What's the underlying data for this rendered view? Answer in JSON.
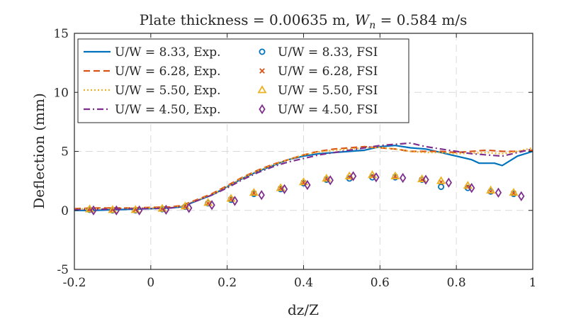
{
  "chart_data": {
    "type": "line",
    "title": "Plate thickness = 0.00635 m, W_n = 0.584 m/s",
    "title_parts": {
      "prefix": "Plate thickness = 0.00635 m, ",
      "var_main": "W",
      "var_sub": "n",
      "suffix": " = 0.584 m/s"
    },
    "xlabel": "dz/Z",
    "ylabel": "Deflection (mm)",
    "xlim": [
      -0.2,
      1.0
    ],
    "ylim": [
      -5,
      15
    ],
    "xticks": [
      -0.2,
      0,
      0.2,
      0.4,
      0.6,
      0.8,
      1.0
    ],
    "xtick_labels": [
      "-0.2",
      "0",
      "0.2",
      "0.4",
      "0.6",
      "0.8",
      "1"
    ],
    "yticks": [
      -5,
      0,
      5,
      10,
      15
    ],
    "ytick_labels": [
      "-5",
      "0",
      "5",
      "10",
      "15"
    ],
    "grid": true,
    "legend_position": "top-left",
    "series": [
      {
        "name": "U/W = 8.33, Exp.",
        "kind": "line",
        "style": "solid",
        "color": "#0072BD",
        "x": [
          -0.2,
          -0.15,
          -0.1,
          -0.05,
          0.0,
          0.05,
          0.08,
          0.12,
          0.16,
          0.2,
          0.24,
          0.28,
          0.32,
          0.36,
          0.4,
          0.44,
          0.48,
          0.52,
          0.56,
          0.6,
          0.64,
          0.68,
          0.72,
          0.76,
          0.8,
          0.84,
          0.86,
          0.9,
          0.92,
          0.96,
          1.0
        ],
        "y": [
          0.0,
          0.0,
          0.05,
          0.1,
          0.15,
          0.2,
          0.3,
          0.8,
          1.3,
          2.0,
          2.7,
          3.3,
          3.8,
          4.3,
          4.6,
          4.8,
          4.9,
          5.0,
          5.1,
          5.4,
          5.5,
          5.3,
          5.2,
          4.9,
          4.6,
          4.3,
          4.0,
          4.0,
          3.8,
          4.6,
          5.0
        ]
      },
      {
        "name": "U/W = 6.28, Exp.",
        "kind": "line",
        "style": "dashed",
        "color": "#D95319",
        "x": [
          -0.2,
          -0.15,
          -0.1,
          -0.05,
          0.0,
          0.05,
          0.08,
          0.12,
          0.16,
          0.2,
          0.24,
          0.28,
          0.32,
          0.36,
          0.4,
          0.44,
          0.48,
          0.52,
          0.56,
          0.6,
          0.64,
          0.68,
          0.72,
          0.76,
          0.8,
          0.84,
          0.88,
          0.92,
          0.96,
          1.0
        ],
        "y": [
          0.15,
          0.2,
          0.2,
          0.2,
          0.25,
          0.3,
          0.4,
          0.9,
          1.4,
          2.1,
          2.8,
          3.4,
          3.9,
          4.3,
          4.7,
          5.0,
          5.2,
          5.3,
          5.4,
          5.3,
          5.2,
          5.0,
          5.0,
          5.0,
          4.9,
          5.0,
          5.1,
          5.0,
          5.0,
          5.1
        ]
      },
      {
        "name": "U/W = 5.50, Exp.",
        "kind": "line",
        "style": "dotted",
        "color": "#EDB120",
        "x": [
          -0.2,
          -0.15,
          -0.1,
          -0.05,
          0.0,
          0.05,
          0.08,
          0.12,
          0.16,
          0.2,
          0.24,
          0.28,
          0.32,
          0.36,
          0.4,
          0.44,
          0.48,
          0.52,
          0.56,
          0.6,
          0.64,
          0.68,
          0.72,
          0.76,
          0.8,
          0.84,
          0.88,
          0.92,
          0.96,
          1.0
        ],
        "y": [
          0.1,
          0.15,
          0.15,
          0.2,
          0.2,
          0.25,
          0.35,
          0.85,
          1.35,
          2.0,
          2.75,
          3.35,
          3.85,
          4.3,
          4.7,
          4.95,
          5.1,
          5.2,
          5.3,
          5.35,
          5.2,
          5.0,
          4.9,
          4.9,
          4.8,
          4.85,
          4.9,
          4.8,
          5.0,
          5.3
        ]
      },
      {
        "name": "U/W = 4.50, Exp.",
        "kind": "line",
        "style": "dashdot",
        "color": "#7E2F8E",
        "x": [
          -0.2,
          -0.15,
          -0.1,
          -0.05,
          0.0,
          0.05,
          0.08,
          0.12,
          0.16,
          0.2,
          0.24,
          0.28,
          0.32,
          0.36,
          0.4,
          0.44,
          0.48,
          0.52,
          0.56,
          0.6,
          0.64,
          0.68,
          0.72,
          0.76,
          0.8,
          0.84,
          0.88,
          0.92,
          0.96,
          1.0
        ],
        "y": [
          0.05,
          0.1,
          0.1,
          0.15,
          0.15,
          0.2,
          0.3,
          0.8,
          1.3,
          1.9,
          2.6,
          3.2,
          3.7,
          4.1,
          4.4,
          4.7,
          4.9,
          5.1,
          5.3,
          5.5,
          5.6,
          5.7,
          5.4,
          5.2,
          5.0,
          4.8,
          4.7,
          4.6,
          4.9,
          5.2
        ]
      },
      {
        "name": "U/W = 8.33, FSI",
        "kind": "marker",
        "marker": "circle",
        "color": "#0072BD",
        "x": [
          -0.16,
          -0.1,
          -0.04,
          0.03,
          0.09,
          0.15,
          0.21,
          0.27,
          0.34,
          0.4,
          0.46,
          0.52,
          0.58,
          0.64,
          0.71,
          0.76,
          0.83,
          0.89,
          0.95
        ],
        "y": [
          0.05,
          0.0,
          0.0,
          0.1,
          0.3,
          0.6,
          0.9,
          1.4,
          1.8,
          2.3,
          2.6,
          2.7,
          2.8,
          2.8,
          2.6,
          2.0,
          1.9,
          1.6,
          1.4
        ]
      },
      {
        "name": "U/W = 6.28, FSI",
        "kind": "marker",
        "marker": "x",
        "color": "#D95319",
        "x": [
          -0.16,
          -0.1,
          -0.04,
          0.03,
          0.09,
          0.15,
          0.21,
          0.27,
          0.34,
          0.4,
          0.46,
          0.52,
          0.58,
          0.64,
          0.71,
          0.76,
          0.83,
          0.89,
          0.95
        ],
        "y": [
          0.05,
          0.05,
          0.05,
          0.1,
          0.3,
          0.6,
          0.95,
          1.45,
          1.85,
          2.35,
          2.65,
          2.8,
          2.9,
          2.85,
          2.6,
          2.4,
          2.0,
          1.6,
          1.45
        ]
      },
      {
        "name": "U/W = 5.50, FSI",
        "kind": "marker",
        "marker": "triangle",
        "color": "#EDB120",
        "x": [
          -0.16,
          -0.1,
          -0.04,
          0.03,
          0.09,
          0.15,
          0.21,
          0.27,
          0.34,
          0.4,
          0.46,
          0.52,
          0.58,
          0.64,
          0.71,
          0.76,
          0.83,
          0.89,
          0.95
        ],
        "y": [
          0.1,
          0.05,
          0.05,
          0.15,
          0.35,
          0.65,
          1.0,
          1.5,
          1.9,
          2.4,
          2.7,
          2.9,
          3.0,
          2.9,
          2.65,
          2.5,
          2.1,
          1.7,
          1.5
        ]
      },
      {
        "name": "U/W = 4.50, FSI",
        "kind": "marker",
        "marker": "diamond",
        "color": "#7E2F8E",
        "x": [
          -0.15,
          -0.09,
          -0.03,
          0.04,
          0.1,
          0.16,
          0.22,
          0.29,
          0.35,
          0.41,
          0.47,
          0.53,
          0.59,
          0.66,
          0.72,
          0.78,
          0.84,
          0.91,
          0.97
        ],
        "y": [
          0.0,
          0.0,
          0.0,
          0.05,
          0.2,
          0.45,
          0.8,
          1.3,
          1.8,
          2.15,
          2.55,
          2.9,
          2.8,
          2.75,
          2.6,
          2.35,
          1.9,
          1.5,
          1.2
        ]
      }
    ]
  }
}
